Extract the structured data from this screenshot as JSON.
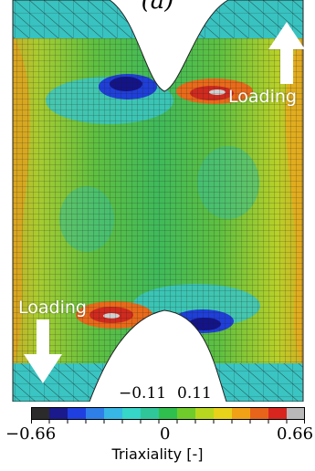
{
  "figure": {
    "panel_label": "(a)",
    "loading_top": "Loading",
    "loading_bottom": "Loading"
  },
  "colorbar": {
    "title": "Triaxiality [-]",
    "min_label": "−0.66",
    "zero_label": "0",
    "max_label": "0.66",
    "mid_neg_label": "−0.11",
    "mid_pos_label": "0.11",
    "colors": [
      "#2b2b2b",
      "#1a1a8c",
      "#1f3fe0",
      "#2f7fe8",
      "#37b7e6",
      "#36d6c9",
      "#2fc79a",
      "#2fbf4f",
      "#6fcc2a",
      "#b8d81f",
      "#e8d21a",
      "#f0a116",
      "#e8641a",
      "#d8261f",
      "#b9b9b9"
    ]
  }
}
